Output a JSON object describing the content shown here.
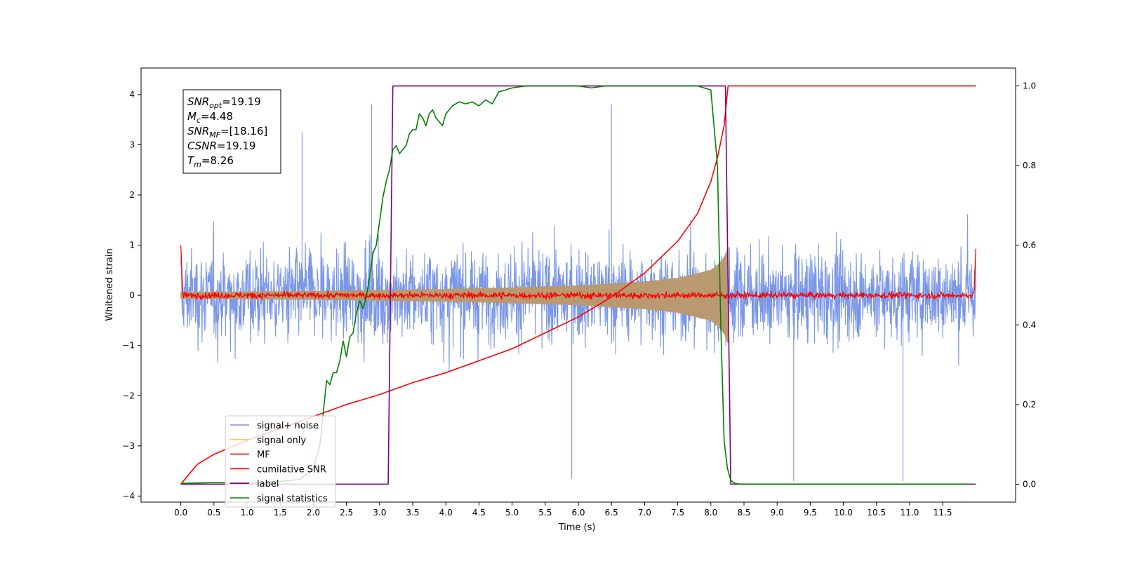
{
  "chart_data": {
    "type": "line",
    "xlabel": "Time (s)",
    "ylabel": "Whitened strain",
    "xlim": [
      -0.6,
      12.6
    ],
    "ylim": [
      -4.12,
      4.53
    ],
    "y2lim": [
      -0.045,
      1.045
    ],
    "x_ticks": [
      "0.0",
      "0.5",
      "1.0",
      "1.5",
      "2.0",
      "2.5",
      "3.0",
      "3.5",
      "4.0",
      "4.5",
      "5.0",
      "5.5",
      "6.0",
      "6.5",
      "7.0",
      "7.5",
      "8.0",
      "8.5",
      "9.0",
      "9.5",
      "10.0",
      "10.5",
      "11.0",
      "11.5"
    ],
    "y_ticks": [
      "4",
      "3",
      "2",
      "1",
      "0",
      "−1",
      "−2",
      "−3",
      "−4"
    ],
    "y2_ticks": [
      "1.0",
      "0.8",
      "0.6",
      "0.4",
      "0.2",
      "0.0"
    ],
    "grid": false,
    "legend_position": "lower-left",
    "annotation": {
      "lines": [
        {
          "base": "SNR",
          "sub": "opt",
          "value": "=19.19"
        },
        {
          "base": "M",
          "sub": "c",
          "value": "=4.48"
        },
        {
          "base": "SNR",
          "sub": "MF",
          "value": "=[18.16]"
        },
        {
          "base": "CSNR",
          "sub": "",
          "value": "=19.19"
        },
        {
          "base": "T",
          "sub": "m",
          "value": "=8.26"
        }
      ]
    },
    "series": [
      {
        "name": "signal+ noise",
        "color": "#7a97e8",
        "axis": "left",
        "kind": "noise",
        "x_range": [
          0,
          12
        ],
        "typical_range": [
          -1.7,
          2.0
        ],
        "spikes": [
          [
            2.88,
            3.8
          ],
          [
            6.5,
            3.8
          ],
          [
            5.9,
            -3.65
          ],
          [
            9.25,
            -3.7
          ],
          [
            10.9,
            -3.7
          ],
          [
            1.83,
            3.25
          ]
        ]
      },
      {
        "name": "signal only",
        "color": "#b99a70",
        "axis": "left",
        "kind": "chirp_envelope",
        "x": [
          0,
          1,
          2,
          3,
          4,
          5,
          6,
          7,
          7.5,
          8,
          8.1,
          8.2,
          8.26
        ],
        "y": [
          0.06,
          0.07,
          0.08,
          0.1,
          0.12,
          0.15,
          0.19,
          0.27,
          0.34,
          0.5,
          0.6,
          0.75,
          0.95
        ]
      },
      {
        "name": "MF",
        "color": "#ff0000",
        "axis": "left",
        "kind": "mf_noise",
        "x_range": [
          0,
          12
        ],
        "level": 0.0,
        "amplitude": 0.08,
        "edges": [
          [
            0,
            1.0
          ],
          [
            12,
            0.93
          ]
        ]
      },
      {
        "name": "cumilative SNR",
        "color": "#ff0000",
        "axis": "right",
        "x": [
          0,
          0.25,
          0.5,
          1,
          1.5,
          2,
          2.5,
          3,
          3.5,
          4,
          4.5,
          5,
          5.5,
          6,
          6.5,
          7,
          7.5,
          7.8,
          8,
          8.1,
          8.2,
          8.26,
          12
        ],
        "y": [
          0.0,
          0.05,
          0.075,
          0.11,
          0.14,
          0.17,
          0.2,
          0.225,
          0.255,
          0.28,
          0.31,
          0.34,
          0.38,
          0.42,
          0.47,
          0.53,
          0.61,
          0.68,
          0.76,
          0.82,
          0.9,
          1.0,
          1.0
        ]
      },
      {
        "name": "label",
        "color": "#800080",
        "axis": "right",
        "x": [
          0,
          3.13,
          3.2,
          8.22,
          8.3,
          12
        ],
        "y": [
          0,
          0,
          1,
          1,
          0,
          0
        ]
      },
      {
        "name": "signal statistics",
        "color": "#008000",
        "axis": "right",
        "x": [
          0,
          0.5,
          1,
          1.5,
          1.8,
          2.0,
          2.1,
          2.2,
          2.25,
          2.3,
          2.35,
          2.4,
          2.45,
          2.5,
          2.55,
          2.6,
          2.65,
          2.7,
          2.75,
          2.8,
          2.85,
          2.9,
          2.95,
          3.0,
          3.05,
          3.1,
          3.15,
          3.2,
          3.25,
          3.3,
          3.35,
          3.4,
          3.45,
          3.5,
          3.55,
          3.6,
          3.65,
          3.7,
          3.75,
          3.8,
          3.85,
          3.9,
          3.95,
          4.0,
          4.05,
          4.1,
          4.2,
          4.3,
          4.4,
          4.5,
          4.6,
          4.7,
          4.8,
          4.9,
          5.0,
          5.2,
          5.4,
          5.6,
          5.8,
          6.0,
          6.2,
          6.4,
          6.6,
          6.8,
          7.0,
          7.2,
          7.4,
          7.6,
          7.8,
          8.0,
          8.1,
          8.15,
          8.2,
          8.25,
          8.3,
          8.35,
          8.4,
          8.5,
          9,
          10,
          11,
          11.95
        ],
        "y": [
          0.002,
          0.004,
          0.003,
          0.007,
          0.012,
          0.04,
          0.1,
          0.26,
          0.25,
          0.28,
          0.28,
          0.31,
          0.36,
          0.32,
          0.37,
          0.38,
          0.43,
          0.46,
          0.44,
          0.47,
          0.52,
          0.58,
          0.6,
          0.66,
          0.72,
          0.76,
          0.79,
          0.84,
          0.85,
          0.83,
          0.84,
          0.85,
          0.88,
          0.89,
          0.89,
          0.93,
          0.92,
          0.9,
          0.93,
          0.94,
          0.92,
          0.91,
          0.9,
          0.93,
          0.94,
          0.95,
          0.96,
          0.955,
          0.96,
          0.95,
          0.965,
          0.955,
          0.985,
          0.99,
          0.995,
          1.0,
          1.0,
          1.0,
          1.0,
          1.0,
          0.995,
          1.0,
          1.0,
          1.0,
          1.0,
          1.0,
          1.0,
          1.0,
          1.0,
          0.99,
          0.8,
          0.4,
          0.11,
          0.04,
          0.01,
          0.003,
          0.001,
          0.0,
          0.0,
          0.0,
          0.0,
          0.0
        ]
      }
    ]
  }
}
